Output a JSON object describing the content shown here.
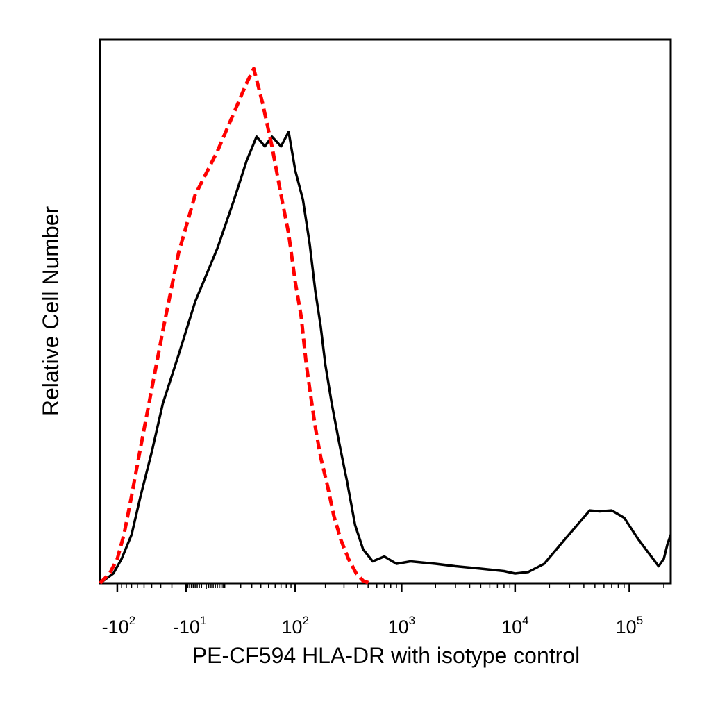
{
  "chart_data": {
    "type": "line",
    "title": "",
    "xlabel": "PE-CF594 HLA-DR with isotype control",
    "ylabel": "Relative Cell Number",
    "x_scale": "biexponential",
    "xlim": [
      -150,
      230000
    ],
    "ylim": [
      0,
      1.12
    ],
    "grid": false,
    "x_ticks": [
      {
        "value": -100,
        "base": "-10",
        "exp": "2"
      },
      {
        "value": -10,
        "base": "-10",
        "exp": "1"
      },
      {
        "value": 100,
        "base": "10",
        "exp": "2"
      },
      {
        "value": 1000,
        "base": "10",
        "exp": "3"
      },
      {
        "value": 10000,
        "base": "10",
        "exp": "4"
      },
      {
        "value": 100000,
        "base": "10",
        "exp": "5"
      }
    ],
    "series": [
      {
        "style": "solid",
        "color": "#000000",
        "points": [
          [
            -150,
            0.0
          ],
          [
            -110,
            0.02
          ],
          [
            -90,
            0.05
          ],
          [
            -70,
            0.1
          ],
          [
            -55,
            0.18
          ],
          [
            -40,
            0.27
          ],
          [
            -28,
            0.37
          ],
          [
            -15,
            0.47
          ],
          [
            -5,
            0.58
          ],
          [
            5,
            0.69
          ],
          [
            15,
            0.79
          ],
          [
            25,
            0.87
          ],
          [
            35,
            0.92
          ],
          [
            45,
            0.9
          ],
          [
            55,
            0.92
          ],
          [
            70,
            0.9
          ],
          [
            85,
            0.93
          ],
          [
            100,
            0.85
          ],
          [
            120,
            0.79
          ],
          [
            140,
            0.7
          ],
          [
            160,
            0.6
          ],
          [
            180,
            0.53
          ],
          [
            200,
            0.45
          ],
          [
            230,
            0.37
          ],
          [
            270,
            0.29
          ],
          [
            320,
            0.21
          ],
          [
            380,
            0.12
          ],
          [
            450,
            0.07
          ],
          [
            550,
            0.045
          ],
          [
            700,
            0.055
          ],
          [
            900,
            0.04
          ],
          [
            1200,
            0.045
          ],
          [
            2000,
            0.04
          ],
          [
            3000,
            0.035
          ],
          [
            5000,
            0.03
          ],
          [
            8000,
            0.025
          ],
          [
            10000,
            0.02
          ],
          [
            13000,
            0.023
          ],
          [
            18000,
            0.04
          ],
          [
            25000,
            0.08
          ],
          [
            35000,
            0.12
          ],
          [
            45000,
            0.15
          ],
          [
            55000,
            0.148
          ],
          [
            70000,
            0.15
          ],
          [
            90000,
            0.135
          ],
          [
            120000,
            0.09
          ],
          [
            150000,
            0.06
          ],
          [
            180000,
            0.035
          ],
          [
            200000,
            0.05
          ],
          [
            215000,
            0.08
          ],
          [
            230000,
            0.1
          ]
        ]
      },
      {
        "style": "dashed",
        "color": "#ff0000",
        "points": [
          [
            -150,
            0.0
          ],
          [
            -120,
            0.02
          ],
          [
            -100,
            0.05
          ],
          [
            -85,
            0.1
          ],
          [
            -70,
            0.18
          ],
          [
            -55,
            0.28
          ],
          [
            -40,
            0.4
          ],
          [
            -28,
            0.52
          ],
          [
            -15,
            0.68
          ],
          [
            -5,
            0.8
          ],
          [
            5,
            0.89
          ],
          [
            15,
            0.97
          ],
          [
            25,
            1.03
          ],
          [
            32,
            1.06
          ],
          [
            42,
            0.99
          ],
          [
            55,
            0.9
          ],
          [
            70,
            0.8
          ],
          [
            85,
            0.72
          ],
          [
            100,
            0.62
          ],
          [
            115,
            0.55
          ],
          [
            130,
            0.45
          ],
          [
            145,
            0.38
          ],
          [
            160,
            0.32
          ],
          [
            180,
            0.26
          ],
          [
            210,
            0.2
          ],
          [
            240,
            0.14
          ],
          [
            280,
            0.09
          ],
          [
            330,
            0.05
          ],
          [
            390,
            0.02
          ],
          [
            450,
            0.005
          ],
          [
            520,
            0.0
          ]
        ]
      }
    ]
  }
}
